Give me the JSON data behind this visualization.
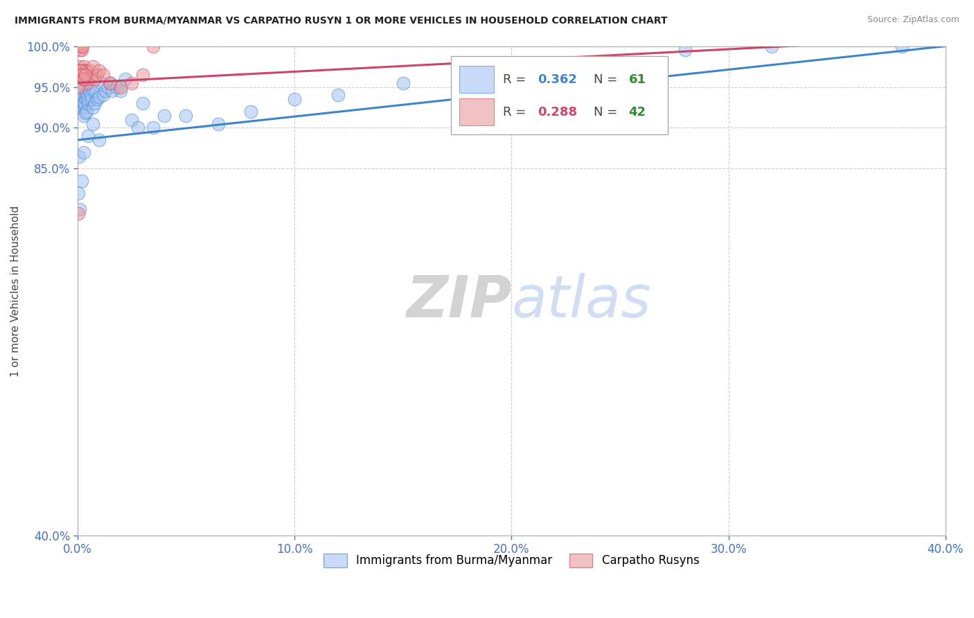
{
  "title": "IMMIGRANTS FROM BURMA/MYANMAR VS CARPATHO RUSYN 1 OR MORE VEHICLES IN HOUSEHOLD CORRELATION CHART",
  "source": "Source: ZipAtlas.com",
  "ylabel": "1 or more Vehicles in Household",
  "xmin": 0.0,
  "xmax": 40.0,
  "ymin": 40.0,
  "ymax": 100.0,
  "xtick_labels": [
    "0.0%",
    "10.0%",
    "20.0%",
    "30.0%",
    "40.0%"
  ],
  "xtick_vals": [
    0.0,
    10.0,
    20.0,
    30.0,
    40.0
  ],
  "ytick_labels": [
    "40.0%",
    "85.0%",
    "90.0%",
    "95.0%",
    "100.0%"
  ],
  "ytick_vals": [
    40.0,
    85.0,
    90.0,
    95.0,
    100.0
  ],
  "blue_color": "#a4c2f4",
  "pink_color": "#ea9999",
  "blue_line_color": "#3d85c8",
  "pink_line_color": "#cc4466",
  "legend_blue_label": "Immigrants from Burma/Myanmar",
  "legend_pink_label": "Carpatho Rusyns",
  "watermark_zip": "ZIP",
  "watermark_atlas": "atlas",
  "blue_scatter_x": [
    0.05,
    0.08,
    0.1,
    0.1,
    0.12,
    0.15,
    0.18,
    0.2,
    0.22,
    0.25,
    0.28,
    0.3,
    0.32,
    0.35,
    0.38,
    0.4,
    0.42,
    0.45,
    0.48,
    0.5,
    0.55,
    0.6,
    0.65,
    0.7,
    0.75,
    0.8,
    0.85,
    0.9,
    1.0,
    1.1,
    1.2,
    1.3,
    1.4,
    1.5,
    1.6,
    1.8,
    2.0,
    2.2,
    2.5,
    3.0,
    3.5,
    4.0,
    5.0,
    6.5,
    8.0,
    10.0,
    12.0,
    15.0,
    18.0,
    20.0,
    22.0,
    25.0,
    28.0,
    32.0,
    38.0,
    1.0,
    2.8,
    0.3,
    0.5,
    0.7,
    0.2
  ],
  "blue_scatter_y": [
    82.0,
    86.5,
    80.0,
    93.5,
    94.0,
    92.5,
    93.0,
    94.5,
    93.8,
    93.0,
    92.5,
    91.5,
    93.0,
    91.8,
    94.2,
    93.5,
    92.0,
    94.0,
    93.0,
    93.5,
    94.5,
    94.0,
    93.5,
    92.5,
    94.5,
    93.0,
    94.5,
    93.5,
    93.8,
    95.5,
    94.0,
    94.5,
    95.0,
    95.5,
    94.5,
    95.0,
    94.5,
    96.0,
    91.0,
    93.0,
    90.0,
    91.5,
    91.5,
    90.5,
    92.0,
    93.5,
    94.0,
    95.5,
    96.0,
    96.5,
    97.0,
    98.0,
    99.5,
    100.0,
    100.0,
    88.5,
    90.0,
    87.0,
    89.0,
    90.5,
    83.5
  ],
  "pink_scatter_x": [
    0.04,
    0.06,
    0.08,
    0.1,
    0.1,
    0.12,
    0.12,
    0.14,
    0.15,
    0.16,
    0.18,
    0.18,
    0.2,
    0.22,
    0.24,
    0.25,
    0.28,
    0.3,
    0.32,
    0.35,
    0.38,
    0.4,
    0.45,
    0.5,
    0.6,
    0.7,
    0.8,
    0.9,
    1.0,
    1.2,
    1.5,
    2.0,
    2.5,
    3.0,
    0.05,
    0.1,
    0.15,
    0.2,
    0.25,
    0.3,
    0.35,
    3.5
  ],
  "pink_scatter_y": [
    79.5,
    100.0,
    100.0,
    97.0,
    97.5,
    97.0,
    100.0,
    99.5,
    96.5,
    97.0,
    97.0,
    100.0,
    99.5,
    97.0,
    100.0,
    96.5,
    96.0,
    97.5,
    96.5,
    97.0,
    96.5,
    97.0,
    95.5,
    96.0,
    97.0,
    97.5,
    96.0,
    96.5,
    97.0,
    96.5,
    95.5,
    95.0,
    95.5,
    96.5,
    95.0,
    96.5,
    97.0,
    96.5,
    96.0,
    96.0,
    96.5,
    100.0
  ],
  "blue_trendline_x": [
    0.0,
    40.0
  ],
  "blue_trendline_y": [
    88.5,
    100.0
  ],
  "pink_trendline_x": [
    0.0,
    40.0
  ],
  "pink_trendline_y": [
    95.5,
    101.0
  ]
}
